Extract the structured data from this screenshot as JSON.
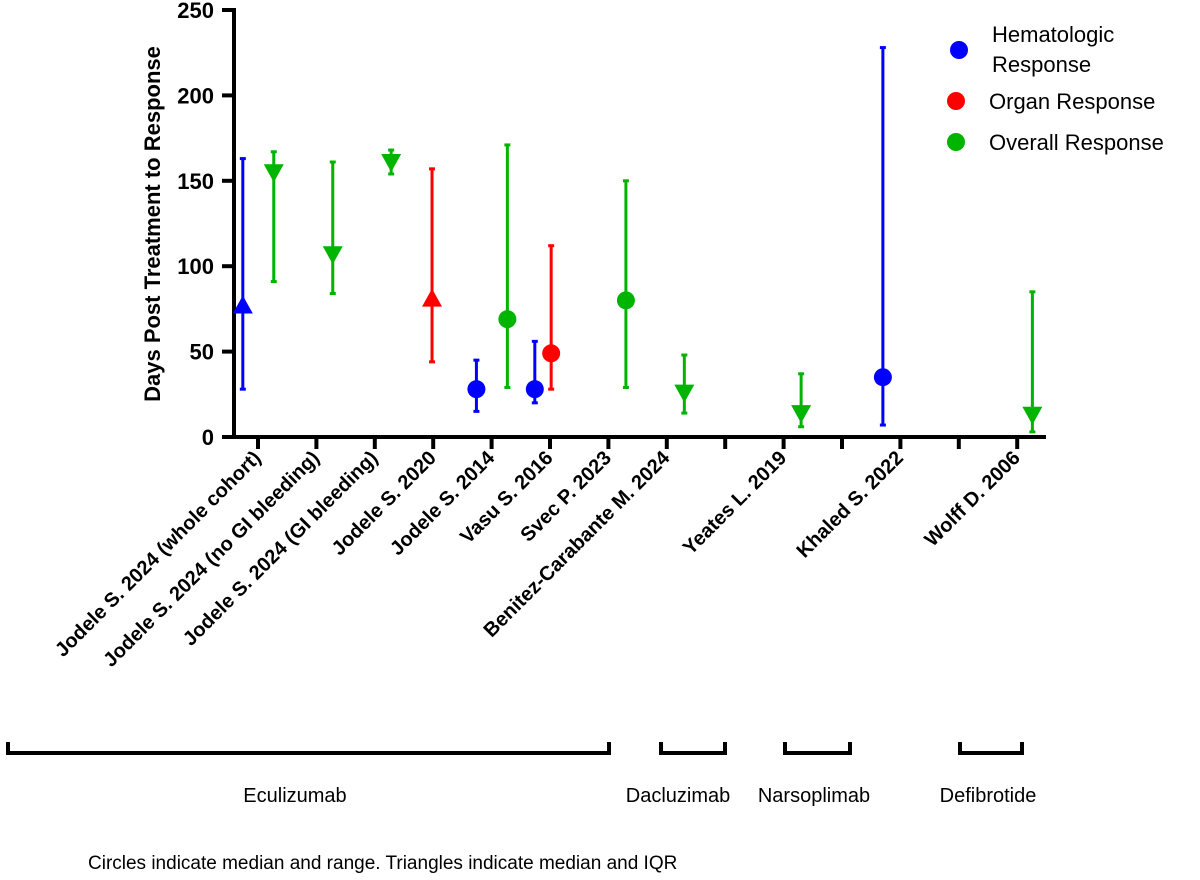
{
  "chart_data": {
    "type": "scatter",
    "title": "",
    "ylabel": "Days Post Treatment to Response",
    "xlabel": "",
    "ylim": [
      0,
      250
    ],
    "yticks": [
      0,
      50,
      100,
      150,
      200,
      250
    ],
    "grid": false,
    "legend_position": "top-right",
    "legend": [
      {
        "name": "Hematologic",
        "name2": "Response",
        "color": "#0000ff"
      },
      {
        "name": "Organ Response",
        "color": "#ff0000"
      },
      {
        "name": "Overall Response",
        "color": "#00b400"
      }
    ],
    "categories": [
      {
        "label": "Jodele S. 2024 (whole cohort)",
        "tick": 0
      },
      {
        "label": "Jodele S. 2024 (no GI bleeding)",
        "tick": 1
      },
      {
        "label": "Jodele S. 2024 (GI bleeding)",
        "tick": 2
      },
      {
        "label": "Jodele S. 2020",
        "tick": 3
      },
      {
        "label": "Jodele S. 2014",
        "tick": 4
      },
      {
        "label": "Vasu S. 2016",
        "tick": 5
      },
      {
        "label": "Svec P. 2023",
        "tick": 6
      },
      {
        "label": "Benitez-Carabante M. 2024",
        "tick": 7
      },
      {
        "label": "Yeates L. 2019",
        "tick": 9
      },
      {
        "label": "Khaled S. 2022",
        "tick": 11
      },
      {
        "label": "Wolff D. 2006",
        "tick": 13
      }
    ],
    "tick_count": 14,
    "points": [
      {
        "study": "Jodele S. 2024 (whole cohort)",
        "series": "Hematologic Response",
        "marker": "triangle-up",
        "x": -0.26,
        "median": 77,
        "low": 28,
        "high": 163
      },
      {
        "study": "Jodele S. 2024 (whole cohort)",
        "series": "Overall Response",
        "marker": "triangle-down",
        "x": 0.27,
        "median": 155,
        "low": 91,
        "high": 167
      },
      {
        "study": "Jodele S. 2024 (no GI bleeding)",
        "series": "Overall Response",
        "marker": "triangle-down",
        "x": 1.28,
        "median": 107,
        "low": 84,
        "high": 161
      },
      {
        "study": "Jodele S. 2024 (GI bleeding)",
        "series": "Overall Response",
        "marker": "triangle-down",
        "x": 2.28,
        "median": 161,
        "low": 154,
        "high": 168
      },
      {
        "study": "Jodele S. 2020",
        "series": "Organ Response",
        "marker": "triangle-up",
        "x": 2.98,
        "median": 81,
        "low": 44,
        "high": 157
      },
      {
        "study": "Jodele S. 2014",
        "series": "Hematologic Response",
        "marker": "circle",
        "x": 3.74,
        "median": 28,
        "low": 15,
        "high": 45
      },
      {
        "study": "Jodele S. 2014",
        "series": "Overall Response",
        "marker": "circle",
        "x": 4.27,
        "median": 69,
        "low": 29,
        "high": 171
      },
      {
        "study": "Vasu S. 2016",
        "series": "Hematologic Response",
        "marker": "circle",
        "x": 4.74,
        "median": 28,
        "low": 20,
        "high": 56
      },
      {
        "study": "Vasu S. 2016",
        "series": "Organ Response",
        "marker": "circle",
        "x": 5.02,
        "median": 49,
        "low": 28,
        "high": 112
      },
      {
        "study": "Svec P. 2023",
        "series": "Overall Response",
        "marker": "circle",
        "x": 6.3,
        "median": 80,
        "low": 29,
        "high": 150
      },
      {
        "study": "Benitez-Carabante M. 2024",
        "series": "Overall Response",
        "marker": "triangle-down",
        "x": 7.3,
        "median": 26,
        "low": 14,
        "high": 48
      },
      {
        "study": "Yeates L. 2019",
        "series": "Overall Response",
        "marker": "triangle-down",
        "x": 9.3,
        "median": 14,
        "low": 6,
        "high": 37
      },
      {
        "study": "Khaled S. 2022",
        "series": "Hematologic Response",
        "marker": "circle",
        "x": 10.7,
        "median": 35,
        "low": 7,
        "high": 228
      },
      {
        "study": "Wolff D. 2006",
        "series": "Overall Response",
        "marker": "triangle-down",
        "x": 13.26,
        "median": 13,
        "low": 3,
        "high": 85
      }
    ],
    "groups": [
      {
        "label": "Eculizumab",
        "from": -0.42,
        "to": 6.0
      },
      {
        "label": "Dacluzimab",
        "from": 6.9,
        "to": 8.0
      },
      {
        "label": "Narsoplimab",
        "from": 9.0,
        "to": 10.1
      },
      {
        "label": "Defibrotide",
        "from": 12.0,
        "to": 13.1
      }
    ],
    "caption": "Circles indicate median and range. Triangles indicate median and IQR"
  }
}
